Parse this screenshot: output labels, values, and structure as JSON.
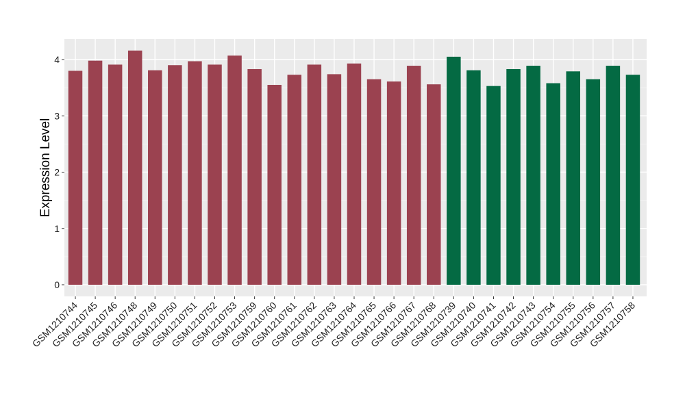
{
  "chart_data": {
    "type": "bar",
    "title": "",
    "xlabel": "",
    "ylabel": "Expression Level",
    "ylim": [
      0,
      4.35
    ],
    "yticks": [
      0,
      1,
      2,
      3,
      4
    ],
    "grid": true,
    "categories": [
      "GSM1210744",
      "GSM1210745",
      "GSM1210746",
      "GSM1210748",
      "GSM1210749",
      "GSM1210750",
      "GSM1210751",
      "GSM1210752",
      "GSM1210753",
      "GSM1210759",
      "GSM1210760",
      "GSM1210761",
      "GSM1210762",
      "GSM1210763",
      "GSM1210764",
      "GSM1210765",
      "GSM1210766",
      "GSM1210767",
      "GSM1210768",
      "GSM1210739",
      "GSM1210740",
      "GSM1210741",
      "GSM1210742",
      "GSM1210743",
      "GSM1210754",
      "GSM1210755",
      "GSM1210756",
      "GSM1210757",
      "GSM1210758"
    ],
    "values": [
      3.8,
      3.98,
      3.91,
      4.16,
      3.81,
      3.9,
      3.97,
      3.91,
      4.07,
      3.83,
      3.55,
      3.73,
      3.91,
      3.74,
      3.93,
      3.65,
      3.61,
      3.89,
      3.56,
      4.05,
      3.81,
      3.53,
      3.83,
      3.89,
      3.58,
      3.79,
      3.65,
      3.89,
      3.73
    ],
    "group_colors": [
      "#9b4250",
      "#046a43"
    ],
    "groups": [
      0,
      0,
      0,
      0,
      0,
      0,
      0,
      0,
      0,
      0,
      0,
      0,
      0,
      0,
      0,
      0,
      0,
      0,
      0,
      1,
      1,
      1,
      1,
      1,
      1,
      1,
      1,
      1,
      1
    ]
  }
}
